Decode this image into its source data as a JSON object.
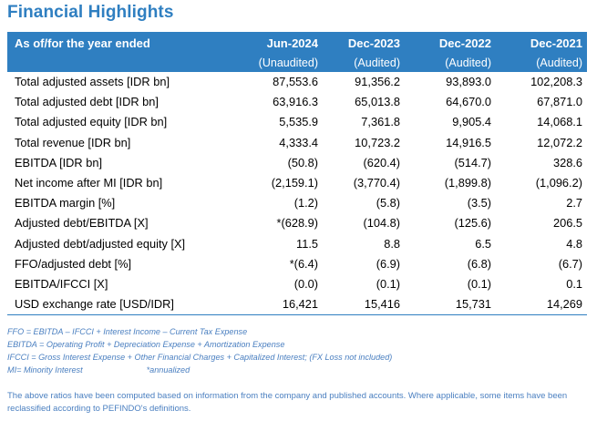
{
  "title": "Financial Highlights",
  "table": {
    "header": [
      "As of/for the year ended",
      "Jun-2024",
      "Dec-2023",
      "Dec-2022",
      "Dec-2021"
    ],
    "subheader": [
      "",
      "(Unaudited)",
      "(Audited)",
      "(Audited)",
      "(Audited)"
    ],
    "rows": [
      [
        "Total adjusted assets [IDR bn]",
        "87,553.6",
        "91,356.2",
        "93,893.0",
        "102,208.3"
      ],
      [
        "Total adjusted debt [IDR bn]",
        "63,916.3",
        "65,013.8",
        "64,670.0",
        "67,871.0"
      ],
      [
        "Total adjusted equity [IDR bn]",
        "5,535.9",
        "7,361.8",
        "9,905.4",
        "14,068.1"
      ],
      [
        "Total revenue [IDR bn]",
        "4,333.4",
        "10,723.2",
        "14,916.5",
        "12,072.2"
      ],
      [
        "EBITDA [IDR bn]",
        "(50.8)",
        "(620.4)",
        "(514.7)",
        "328.6"
      ],
      [
        "Net income after MI [IDR bn]",
        "(2,159.1)",
        "(3,770.4)",
        "(1,899.8)",
        "(1,096.2)"
      ],
      [
        "EBITDA margin [%]",
        "(1.2)",
        "(5.8)",
        "(3.5)",
        "2.7"
      ],
      [
        "Adjusted debt/EBITDA [X]",
        "*(628.9)",
        "(104.8)",
        "(125.6)",
        "206.5"
      ],
      [
        "Adjusted debt/adjusted equity [X]",
        "11.5",
        "8.8",
        "6.5",
        "4.8"
      ],
      [
        "FFO/adjusted debt [%]",
        "*(6.4)",
        "(6.9)",
        "(6.8)",
        "(6.7)"
      ],
      [
        "EBITDA/IFCCI [X]",
        "(0.0)",
        "(0.1)",
        "(0.1)",
        "0.1"
      ],
      [
        "USD exchange rate [USD/IDR]",
        "16,421",
        "15,416",
        "15,731",
        "14,269"
      ]
    ]
  },
  "notes": {
    "ffo": "FFO = EBITDA – IFCCI + Interest Income – Current Tax Expense",
    "ebitda": "EBITDA = Operating Profit + Depreciation Expense + Amortization Expense",
    "ifcci": "IFCCI = Gross Interest Expense + Other Financial Charges + Capitalized Interest; (FX Loss not included)",
    "mi": "MI= Minority Interest",
    "annualized": "*annualized"
  },
  "footer": "The above ratios have been computed based on information from the company and published accounts. Where applicable, some items have been reclassified according to PEFINDO's definitions.",
  "colors": {
    "accent": "#2f7fc1",
    "note_text": "#4a7fc0"
  }
}
